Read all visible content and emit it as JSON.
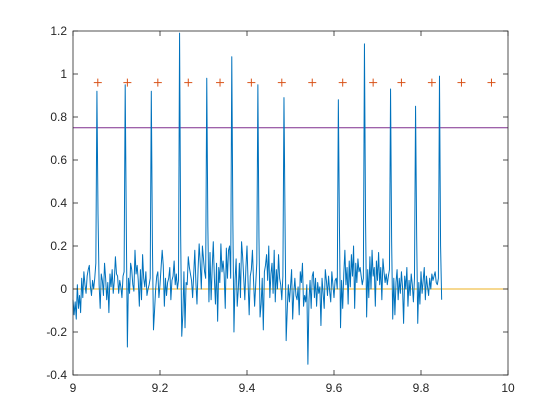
{
  "chart_data": {
    "type": "line",
    "title": "",
    "xlabel": "",
    "ylabel": "",
    "xlim": [
      9,
      10
    ],
    "ylim": [
      -0.4,
      1.2
    ],
    "x_ticks": [
      9,
      9.2,
      9.4,
      9.6,
      9.8,
      10
    ],
    "x_tick_labels": [
      "9",
      "9.2",
      "9.4",
      "9.6",
      "9.8",
      "10"
    ],
    "y_ticks": [
      -0.4,
      -0.2,
      0,
      0.2,
      0.4,
      0.6,
      0.8,
      1,
      1.2
    ],
    "y_tick_labels": [
      "-0.4",
      "-0.2",
      "0",
      "0.2",
      "0.4",
      "0.6",
      "0.8",
      "1",
      "1.2"
    ],
    "grid": false,
    "legend": "none",
    "series": [
      {
        "kind": "signal-line",
        "color": "#0072BD",
        "x_start": 9.0,
        "x_step": 0.0025,
        "values": [
          -0.05,
          -0.12,
          -0.06,
          -0.14,
          0.02,
          -0.09,
          -0.03,
          -0.11,
          0.05,
          -0.04,
          0.08,
          0.02,
          -0.02,
          0.06,
          0.09,
          0.11,
          0.01,
          -0.03,
          0.04,
          0.0,
          0.05,
          0.12,
          0.92,
          0.35,
          0.02,
          -0.09,
          0.07,
          0.04,
          -0.03,
          0.12,
          0.05,
          -0.05,
          0.03,
          -0.11,
          0.07,
          0.01,
          0.09,
          -0.02,
          0.04,
          0.15,
          0.07,
          0.06,
          -0.02,
          0.04,
          0.01,
          -0.04,
          0.06,
          0.08,
          0.95,
          0.3,
          -0.27,
          0.05,
          -0.02,
          0.12,
          0.09,
          0.02,
          -0.01,
          0.18,
          0.07,
          0.11,
          0.04,
          -0.08,
          0.09,
          -0.05,
          0.16,
          0.05,
          0.01,
          0.08,
          -0.03,
          0.0,
          0.02,
          0.05,
          0.92,
          0.22,
          -0.19,
          -0.1,
          0.0,
          0.06,
          0.08,
          -0.04,
          0.02,
          0.1,
          0.18,
          0.11,
          -0.08,
          0.05,
          -0.03,
          0.03,
          0.05,
          0.1,
          -0.05,
          0.04,
          0.06,
          0.13,
          0.02,
          0.07,
          0.0,
          0.04,
          1.19,
          0.25,
          -0.22,
          -0.12,
          0.08,
          -0.18,
          0.03,
          0.02,
          0.15,
          0.1,
          0.07,
          0.04,
          -0.04,
          0.07,
          0.18,
          0.03,
          -0.07,
          0.09,
          0.21,
          0.12,
          0.0,
          0.2,
          0.14,
          0.08,
          0.05,
          0.98,
          0.29,
          -0.06,
          0.17,
          -0.05,
          0.1,
          0.22,
          0.05,
          -0.07,
          0.12,
          -0.15,
          0.1,
          0.03,
          0.21,
          0.08,
          0.13,
          0.07,
          -0.09,
          0.19,
          0.05,
          0.18,
          0.2,
          0.05,
          1.08,
          0.31,
          -0.2,
          0.04,
          0.14,
          -0.08,
          0.0,
          0.12,
          -0.04,
          0.22,
          0.15,
          0.05,
          -0.05,
          0.1,
          0.2,
          0.03,
          -0.12,
          0.06,
          0.09,
          0.18,
          0.04,
          -0.08,
          0.02,
          0.12,
          0.95,
          0.24,
          -0.13,
          -0.07,
          0.05,
          -0.19,
          0.08,
          0.11,
          0.16,
          0.04,
          0.2,
          -0.04,
          0.07,
          0.12,
          -0.02,
          0.18,
          -0.06,
          0.09,
          0.0,
          0.16,
          0.05,
          0.02,
          -0.05,
          0.06,
          0.89,
          0.3,
          -0.24,
          -0.1,
          0.02,
          -0.06,
          0.01,
          0.09,
          -0.14,
          -0.02,
          0.05,
          -0.03,
          -0.05,
          0.01,
          -0.12,
          0.08,
          0.03,
          0.12,
          -0.08,
          -0.03,
          -0.06,
          0.02,
          -0.35,
          -0.05,
          0.04,
          -0.09,
          0.06,
          0.08,
          -0.04,
          0.05,
          -0.08,
          0.03,
          -0.02,
          0.01,
          -0.17,
          0.05,
          -0.02,
          -0.09,
          0.09,
          0.04,
          -0.03,
          0.06,
          -0.01,
          -0.06,
          0.08,
          0.02,
          -0.04,
          0.04,
          0.05,
          0.0,
          0.88,
          0.29,
          -0.18,
          0.04,
          -0.09,
          0.07,
          0.18,
          0.02,
          0.1,
          -0.07,
          0.13,
          0.01,
          0.16,
          0.06,
          0.2,
          -0.09,
          0.12,
          0.03,
          0.14,
          0.08,
          0.1,
          0.06,
          0.02,
          0.05,
          1.14,
          0.32,
          -0.13,
          0.09,
          -0.04,
          0.15,
          0.0,
          0.18,
          0.06,
          0.1,
          -0.08,
          0.13,
          0.04,
          0.17,
          0.02,
          0.1,
          -0.05,
          0.14,
          0.08,
          0.03,
          0.07,
          0.02,
          0.06,
          0.09,
          0.93,
          0.22,
          -0.14,
          0.05,
          -0.12,
          0.03,
          0.09,
          -0.05,
          0.05,
          -0.02,
          0.08,
          0.01,
          -0.16,
          0.06,
          0.0,
          0.1,
          -0.08,
          0.04,
          -0.03,
          0.07,
          0.02,
          -0.06,
          0.05,
          0.85,
          0.25,
          -0.16,
          0.03,
          -0.07,
          0.08,
          -0.02,
          0.04,
          0.1,
          -0.05,
          0.06,
          0.01,
          -0.03,
          0.05,
          0.0,
          0.07,
          0.04,
          0.06,
          0.08,
          0.03,
          0.02,
          0.05,
          0.99,
          0.2,
          -0.05
        ]
      },
      {
        "kind": "peak-markers",
        "marker": "+",
        "color": "#D95319",
        "x": [
          9.057,
          9.125,
          9.195,
          9.265,
          9.338,
          9.41,
          9.48,
          9.55,
          9.62,
          9.69,
          9.755,
          9.825,
          9.893,
          9.962
        ],
        "y": [
          0.96,
          0.96,
          0.96,
          0.96,
          0.96,
          0.96,
          0.96,
          0.96,
          0.96,
          0.96,
          0.96,
          0.96,
          0.96,
          0.96
        ]
      },
      {
        "kind": "horizontal-line",
        "color": "#EDB120",
        "y": 0.0
      },
      {
        "kind": "horizontal-line",
        "color": "#7E2F8E",
        "y": 0.75
      }
    ]
  }
}
